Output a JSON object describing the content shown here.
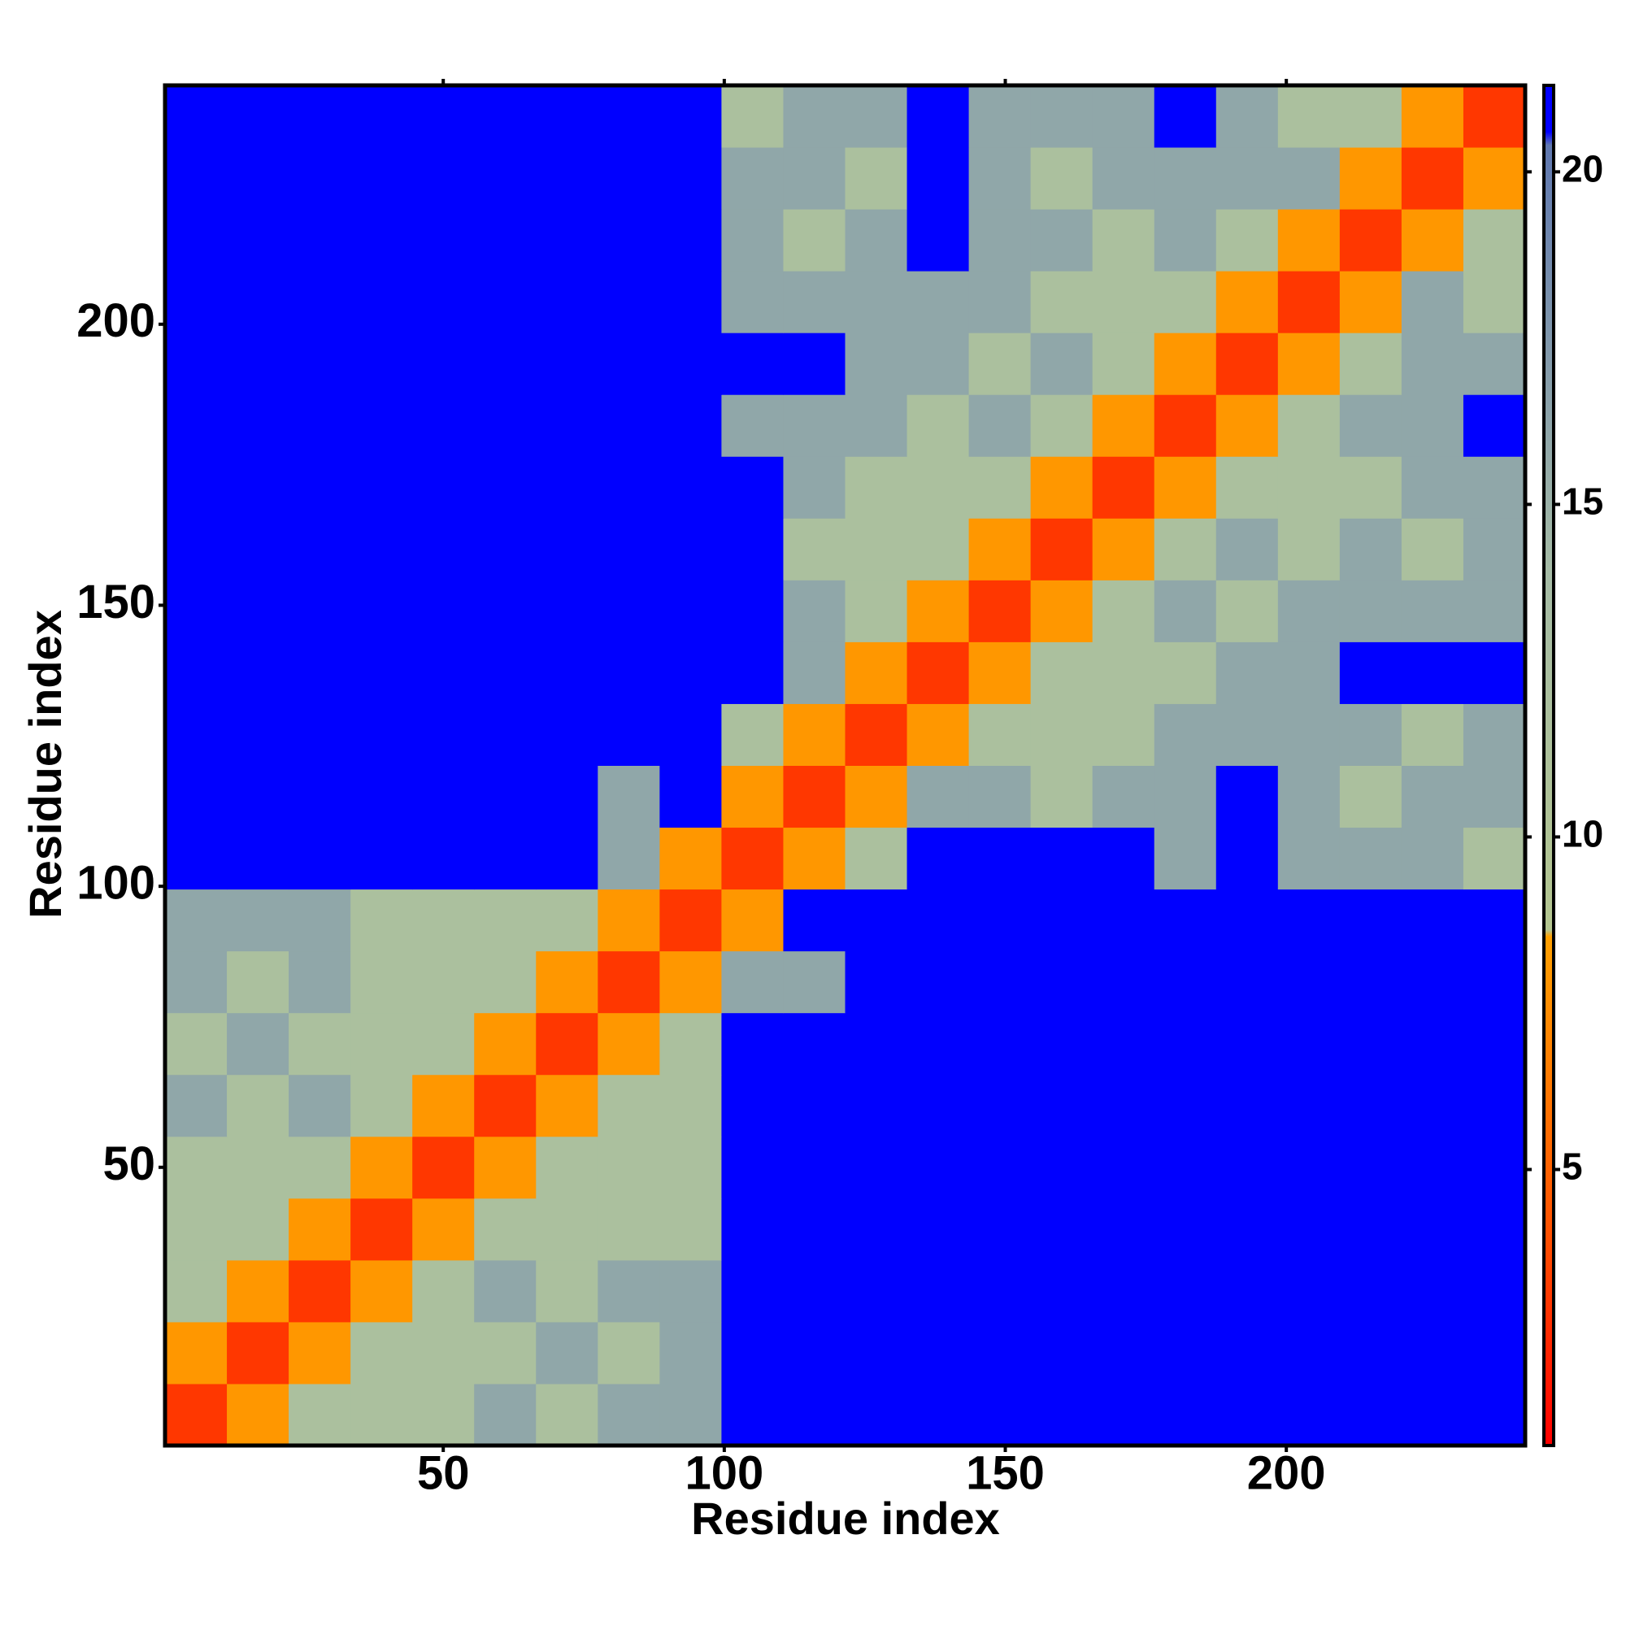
{
  "chart_data": {
    "type": "heatmap",
    "x_label": "Residue index",
    "y_label": "Residue index",
    "x": [
      6,
      17,
      28,
      39,
      50,
      61,
      72,
      83,
      94,
      105,
      116,
      127,
      138,
      149,
      160,
      171,
      182,
      193,
      204,
      215,
      226,
      237
    ],
    "y": [
      6,
      17,
      28,
      39,
      50,
      61,
      72,
      83,
      94,
      105,
      116,
      127,
      138,
      149,
      160,
      171,
      182,
      193,
      204,
      215,
      226,
      237
    ],
    "z": [
      [
        3,
        8,
        12,
        12,
        12,
        16,
        12,
        16,
        16,
        21,
        21,
        21,
        21,
        21,
        21,
        21,
        21,
        21,
        21,
        21,
        21,
        21
      ],
      [
        8,
        3,
        8,
        12,
        12,
        12,
        16,
        12,
        16,
        21,
        21,
        21,
        21,
        21,
        21,
        21,
        21,
        21,
        21,
        21,
        21,
        21
      ],
      [
        12,
        8,
        3,
        8,
        12,
        16,
        12,
        16,
        16,
        21,
        21,
        21,
        21,
        21,
        21,
        21,
        21,
        21,
        21,
        21,
        21,
        21
      ],
      [
        12,
        12,
        8,
        3,
        8,
        12,
        12,
        12,
        12,
        21,
        21,
        21,
        21,
        21,
        21,
        21,
        21,
        21,
        21,
        21,
        21,
        21
      ],
      [
        12,
        12,
        12,
        8,
        3,
        8,
        12,
        12,
        12,
        21,
        21,
        21,
        21,
        21,
        21,
        21,
        21,
        21,
        21,
        21,
        21,
        21
      ],
      [
        16,
        12,
        16,
        12,
        8,
        3,
        8,
        12,
        12,
        21,
        21,
        21,
        21,
        21,
        21,
        21,
        21,
        21,
        21,
        21,
        21,
        21
      ],
      [
        12,
        16,
        12,
        12,
        12,
        8,
        3,
        8,
        12,
        21,
        21,
        21,
        21,
        21,
        21,
        21,
        21,
        21,
        21,
        21,
        21,
        21
      ],
      [
        16,
        12,
        16,
        12,
        12,
        12,
        8,
        3,
        8,
        16,
        16,
        21,
        21,
        21,
        21,
        21,
        21,
        21,
        21,
        21,
        21,
        21
      ],
      [
        16,
        16,
        16,
        12,
        12,
        12,
        12,
        8,
        3,
        8,
        21,
        21,
        21,
        21,
        21,
        21,
        21,
        21,
        21,
        21,
        21,
        21
      ],
      [
        21,
        21,
        21,
        21,
        21,
        21,
        21,
        16,
        8,
        3,
        8,
        12,
        21,
        21,
        21,
        21,
        16,
        21,
        16,
        16,
        16,
        12
      ],
      [
        21,
        21,
        21,
        21,
        21,
        21,
        21,
        16,
        21,
        8,
        3,
        8,
        16,
        16,
        12,
        16,
        16,
        21,
        16,
        12,
        16,
        16
      ],
      [
        21,
        21,
        21,
        21,
        21,
        21,
        21,
        21,
        21,
        12,
        8,
        3,
        8,
        12,
        12,
        12,
        16,
        16,
        16,
        16,
        12,
        16
      ],
      [
        21,
        21,
        21,
        21,
        21,
        21,
        21,
        21,
        21,
        21,
        16,
        8,
        3,
        8,
        12,
        12,
        12,
        16,
        16,
        21,
        21,
        21
      ],
      [
        21,
        21,
        21,
        21,
        21,
        21,
        21,
        21,
        21,
        21,
        16,
        12,
        8,
        3,
        8,
        12,
        16,
        12,
        16,
        16,
        16,
        16
      ],
      [
        21,
        21,
        21,
        21,
        21,
        21,
        21,
        21,
        21,
        21,
        12,
        12,
        12,
        8,
        3,
        8,
        12,
        16,
        12,
        16,
        12,
        16
      ],
      [
        21,
        21,
        21,
        21,
        21,
        21,
        21,
        21,
        21,
        21,
        16,
        12,
        12,
        12,
        8,
        3,
        8,
        12,
        12,
        12,
        16,
        16
      ],
      [
        21,
        21,
        21,
        21,
        21,
        21,
        21,
        21,
        21,
        16,
        16,
        16,
        12,
        16,
        12,
        8,
        3,
        8,
        12,
        16,
        16,
        21
      ],
      [
        21,
        21,
        21,
        21,
        21,
        21,
        21,
        21,
        21,
        21,
        21,
        16,
        16,
        12,
        16,
        12,
        8,
        3,
        8,
        12,
        16,
        16
      ],
      [
        21,
        21,
        21,
        21,
        21,
        21,
        21,
        21,
        21,
        16,
        16,
        16,
        16,
        16,
        12,
        12,
        12,
        8,
        3,
        8,
        16,
        12
      ],
      [
        21,
        21,
        21,
        21,
        21,
        21,
        21,
        21,
        21,
        16,
        12,
        16,
        21,
        16,
        16,
        12,
        16,
        12,
        8,
        3,
        8,
        12
      ],
      [
        21,
        21,
        21,
        21,
        21,
        21,
        21,
        21,
        21,
        16,
        16,
        12,
        21,
        16,
        12,
        16,
        16,
        16,
        16,
        8,
        3,
        8
      ],
      [
        21,
        21,
        21,
        21,
        21,
        21,
        21,
        21,
        21,
        12,
        16,
        16,
        21,
        16,
        16,
        16,
        21,
        16,
        12,
        12,
        8,
        3
      ]
    ],
    "xlim": [
      0.5,
      242.5
    ],
    "ylim": [
      0.5,
      242.5
    ],
    "xticks": [
      50,
      100,
      150,
      200
    ],
    "yticks": [
      50,
      100,
      150,
      200
    ],
    "zlim": [
      0.85,
      21.3
    ],
    "zticks": [
      5,
      10,
      15,
      20
    ],
    "colorscale": [
      [
        0.85,
        "#ff0000"
      ],
      [
        4,
        "#ff5000"
      ],
      [
        8.5,
        "#ffa000"
      ],
      [
        8.6,
        "#b4c690"
      ],
      [
        14,
        "#a6bca6"
      ],
      [
        20.4,
        "#6078b0"
      ],
      [
        20.6,
        "#0000ff"
      ],
      [
        21.3,
        "#0000ff"
      ]
    ]
  }
}
